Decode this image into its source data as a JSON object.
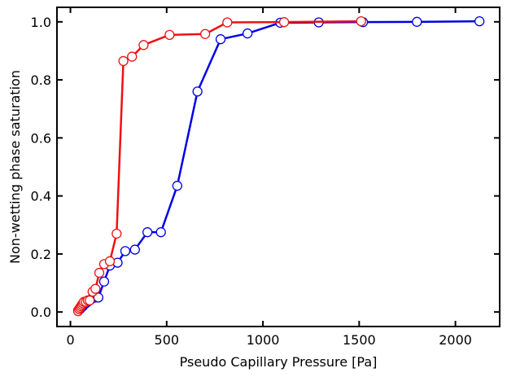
{
  "chart_data": {
    "type": "line",
    "title": "",
    "xlabel": "Pseudo Capillary Pressure [Pa]",
    "ylabel": "Non-wetting phase saturation",
    "xlim": [
      -70,
      2230
    ],
    "ylim": [
      -0.05,
      1.05
    ],
    "xticks": [
      0,
      500,
      1000,
      1500,
      2000
    ],
    "xtick_labels": [
      "0",
      "500",
      "1000",
      "1500",
      "2000"
    ],
    "yticks": [
      0.0,
      0.2,
      0.4,
      0.6,
      0.8,
      1.0
    ],
    "ytick_labels": [
      "0.0",
      "0.2",
      "0.4",
      "0.6",
      "0.8",
      "1.0"
    ],
    "grid": false,
    "legend": null,
    "series": [
      {
        "name": "blue",
        "color": "#0000e6",
        "marker": "open-circle",
        "x": [
          40,
          45,
          50,
          55,
          60,
          65,
          70,
          80,
          90,
          100,
          110,
          130,
          145,
          175,
          205,
          245,
          285,
          335,
          400,
          470,
          555,
          660,
          780,
          920,
          1090,
          1290,
          1520,
          1800,
          2125
        ],
        "y": [
          0.005,
          0.008,
          0.01,
          0.015,
          0.018,
          0.02,
          0.025,
          0.03,
          0.035,
          0.04,
          0.045,
          0.05,
          0.05,
          0.105,
          0.16,
          0.17,
          0.21,
          0.215,
          0.275,
          0.275,
          0.435,
          0.76,
          0.94,
          0.96,
          0.997,
          0.998,
          0.999,
          1.0,
          1.002
        ]
      },
      {
        "name": "red",
        "color": "#ee1111",
        "marker": "open-circle",
        "x": [
          40,
          45,
          50,
          55,
          60,
          65,
          70,
          80,
          90,
          100,
          115,
          130,
          150,
          175,
          205,
          240,
          275,
          320,
          380,
          515,
          700,
          815,
          1110,
          1510
        ],
        "y": [
          0.003,
          0.01,
          0.015,
          0.02,
          0.025,
          0.03,
          0.035,
          0.035,
          0.04,
          0.04,
          0.07,
          0.08,
          0.135,
          0.165,
          0.175,
          0.27,
          0.865,
          0.88,
          0.92,
          0.955,
          0.958,
          0.998,
          0.999,
          1.002
        ]
      }
    ]
  }
}
